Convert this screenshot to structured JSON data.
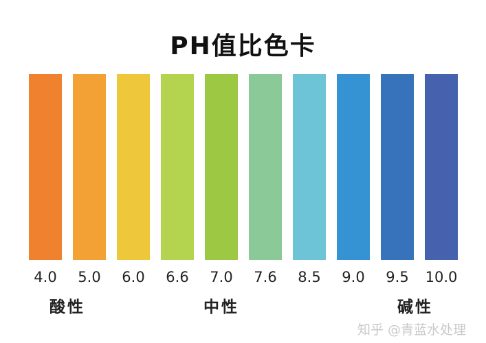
{
  "title": "PH值比色卡",
  "chart_data": {
    "type": "table",
    "title": "PH值比色卡",
    "categories": [
      "4.0",
      "5.0",
      "6.0",
      "6.6",
      "7.0",
      "7.6",
      "8.5",
      "9.0",
      "9.5",
      "10.0"
    ],
    "colors": [
      "#f0812f",
      "#f3a135",
      "#eec83a",
      "#b4d34e",
      "#9cc843",
      "#8bc998",
      "#6cc4d6",
      "#3592d3",
      "#3673ba",
      "#4661ad"
    ],
    "groups": [
      {
        "label": "酸性",
        "under": "4.0"
      },
      {
        "label": "中性",
        "under": "7.0"
      },
      {
        "label": "碱性",
        "under": "9.5"
      }
    ]
  },
  "watermark": "知乎 @青蓝水处理"
}
